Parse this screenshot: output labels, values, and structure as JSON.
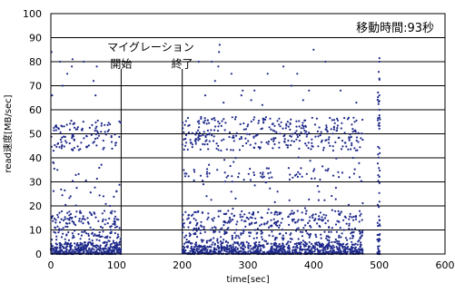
{
  "chart_data": {
    "type": "scatter",
    "xlabel": "time[sec]",
    "ylabel": "read速度[MB/sec]",
    "xlim": [
      0,
      600
    ],
    "ylim": [
      0,
      100
    ],
    "x_ticks": [
      "0",
      "100",
      "200",
      "300",
      "400",
      "500",
      "600"
    ],
    "y_ticks": [
      "0",
      "10",
      "20",
      "30",
      "40",
      "50",
      "60",
      "70",
      "80",
      "90",
      "100"
    ],
    "grid": "horizontal",
    "marker_color": "#1f2a8a",
    "annotations": {
      "migration": "マイグレーション",
      "start": "開始",
      "end": "終了",
      "duration": "移動時間:93秒"
    },
    "markers": [
      {
        "x": 107,
        "label": "start"
      },
      {
        "x": 200,
        "label": "end"
      }
    ],
    "clusters": [
      {
        "x_range": [
          0,
          107
        ],
        "y_range": [
          0,
          5
        ],
        "count": 400
      },
      {
        "x_range": [
          0,
          107
        ],
        "y_range": [
          5,
          18
        ],
        "count": 160
      },
      {
        "x_range": [
          0,
          107
        ],
        "y_range": [
          43,
          56
        ],
        "count": 110
      },
      {
        "x_range": [
          0,
          107
        ],
        "y_range": [
          20,
          40
        ],
        "count": 25
      },
      {
        "x_range": [
          200,
          475
        ],
        "y_range": [
          0,
          5
        ],
        "count": 900
      },
      {
        "x_range": [
          200,
          475
        ],
        "y_range": [
          5,
          18
        ],
        "count": 380
      },
      {
        "x_range": [
          200,
          475
        ],
        "y_range": [
          43,
          57
        ],
        "count": 330
      },
      {
        "x_range": [
          200,
          475
        ],
        "y_range": [
          30,
          36
        ],
        "count": 60
      },
      {
        "x_range": [
          200,
          475
        ],
        "y_range": [
          18,
          42
        ],
        "count": 45
      },
      {
        "x_range": [
          497,
          501
        ],
        "y_range": [
          0,
          85
        ],
        "count": 70
      }
    ],
    "points": [
      [
        1,
        84
      ],
      [
        2,
        66
      ],
      [
        4,
        43
      ],
      [
        10,
        35
      ],
      [
        14,
        80
      ],
      [
        25,
        75
      ],
      [
        32,
        78
      ],
      [
        33,
        81
      ],
      [
        30,
        24
      ],
      [
        18,
        70
      ],
      [
        50,
        80
      ],
      [
        65,
        72
      ],
      [
        68,
        66
      ],
      [
        70,
        78
      ],
      [
        80,
        24
      ],
      [
        90,
        20
      ],
      [
        100,
        26
      ],
      [
        225,
        80
      ],
      [
        235,
        66
      ],
      [
        245,
        80
      ],
      [
        250,
        72
      ],
      [
        255,
        78
      ],
      [
        256,
        84
      ],
      [
        257,
        87
      ],
      [
        263,
        63
      ],
      [
        275,
        75
      ],
      [
        290,
        66
      ],
      [
        292,
        68
      ],
      [
        305,
        64
      ],
      [
        310,
        68
      ],
      [
        322,
        62
      ],
      [
        330,
        75
      ],
      [
        354,
        78
      ],
      [
        366,
        70
      ],
      [
        375,
        75
      ],
      [
        384,
        64
      ],
      [
        393,
        68
      ],
      [
        400,
        85
      ],
      [
        418,
        80
      ],
      [
        441,
        68
      ],
      [
        465,
        63
      ],
      [
        460,
        40
      ],
      [
        470,
        32
      ],
      [
        500,
        80
      ],
      [
        500,
        73
      ],
      [
        500,
        66
      ],
      [
        500,
        60
      ],
      [
        500,
        44
      ]
    ]
  }
}
